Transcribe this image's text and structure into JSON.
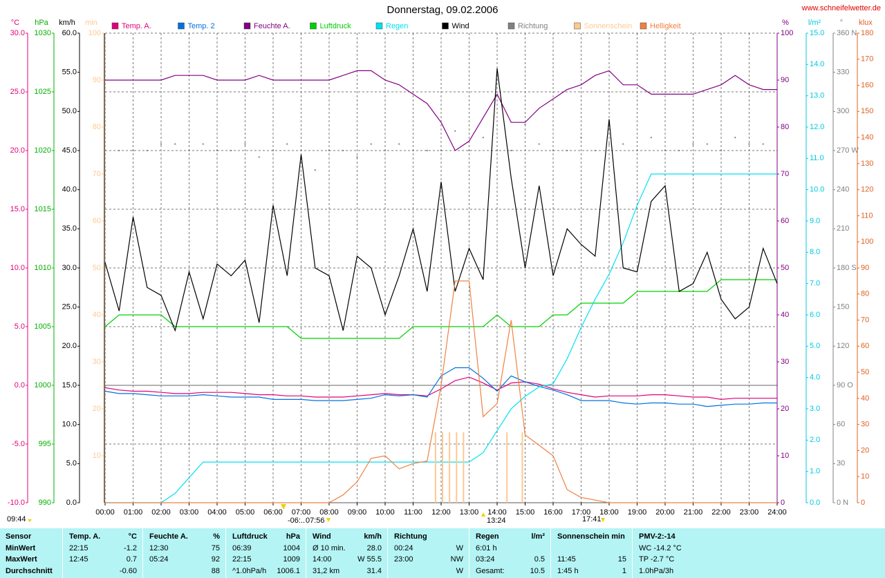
{
  "chart_data": {
    "type": "line",
    "title": "Donnerstag, 09.02.2006",
    "source": "www.schneifelwetter.de",
    "grid": true,
    "annotations": [
      "09:44",
      "-06:..",
      "07:56",
      "13:24",
      "17:41"
    ],
    "xlim": [
      0,
      24
    ],
    "xticks": [
      {
        "value": 0,
        "label": "00:00"
      },
      {
        "value": 1,
        "label": "01:00"
      },
      {
        "value": 2,
        "label": "02:00"
      },
      {
        "value": 3,
        "label": "03:00"
      },
      {
        "value": 4,
        "label": "04:00"
      },
      {
        "value": 5,
        "label": "05:00"
      },
      {
        "value": 6,
        "label": "06:00"
      },
      {
        "value": 7,
        "label": "07:00"
      },
      {
        "value": 8,
        "label": "08:00"
      },
      {
        "value": 9,
        "label": "09:00"
      },
      {
        "value": 10,
        "label": "10:00"
      },
      {
        "value": 11,
        "label": "11:00"
      },
      {
        "value": 12,
        "label": "12:00"
      },
      {
        "value": 13,
        "label": "13:00"
      },
      {
        "value": 14,
        "label": "14:00"
      },
      {
        "value": 15,
        "label": "15:00"
      },
      {
        "value": 16,
        "label": "16:00"
      },
      {
        "value": 17,
        "label": "17:00"
      },
      {
        "value": 18,
        "label": "18:00"
      },
      {
        "value": 19,
        "label": "19:00"
      },
      {
        "value": 20,
        "label": "20:00"
      },
      {
        "value": 21,
        "label": "21:00"
      },
      {
        "value": 22,
        "label": "22:00"
      },
      {
        "value": 23,
        "label": "23:00"
      },
      {
        "value": 24,
        "label": "24:00"
      }
    ],
    "x": [
      0,
      0.5,
      1,
      1.5,
      2,
      2.5,
      3,
      3.5,
      4,
      4.5,
      5,
      5.5,
      6,
      6.5,
      7,
      7.5,
      8,
      8.5,
      9,
      9.5,
      10,
      10.5,
      11,
      11.5,
      12,
      12.5,
      13,
      13.5,
      14,
      14.5,
      15,
      15.5,
      16,
      16.5,
      17,
      17.5,
      18,
      18.5,
      19,
      19.5,
      20,
      20.5,
      21,
      21.5,
      22,
      22.5,
      23,
      23.5,
      24
    ],
    "axes": [
      {
        "unit": "°C",
        "side": "left",
        "color": "#e0007a",
        "ylim": [
          -10,
          30
        ],
        "yticks": [
          {
            "value": -10,
            "label": "-10.0"
          },
          {
            "value": -5,
            "label": "-5.0"
          },
          {
            "value": 0,
            "label": "0.0"
          },
          {
            "value": 5,
            "label": "5.0"
          },
          {
            "value": 10,
            "label": "10.0"
          },
          {
            "value": 15,
            "label": "15.0"
          },
          {
            "value": 20,
            "label": "20.0"
          },
          {
            "value": 25,
            "label": "25.0"
          },
          {
            "value": 30,
            "label": "30.0"
          }
        ]
      },
      {
        "unit": "hPa",
        "side": "left",
        "color": "#00b000",
        "ylim": [
          990,
          1030
        ],
        "yticks": [
          990,
          995,
          1000,
          1005,
          1010,
          1015,
          1020,
          1025,
          1030
        ]
      },
      {
        "unit": "km/h",
        "side": "left",
        "color": "#000000",
        "ylim": [
          0,
          60
        ],
        "yticks": [
          {
            "value": 0,
            "label": "0.0"
          },
          {
            "value": 5,
            "label": "5.0"
          },
          {
            "value": 10,
            "label": "10.0"
          },
          {
            "value": 15,
            "label": "15.0"
          },
          {
            "value": 20,
            "label": "20.0"
          },
          {
            "value": 25,
            "label": "25.0"
          },
          {
            "value": 30,
            "label": "30.0"
          },
          {
            "value": 35,
            "label": "35.0"
          },
          {
            "value": 40,
            "label": "40.0"
          },
          {
            "value": 45,
            "label": "45.0"
          },
          {
            "value": 50,
            "label": "50.0"
          },
          {
            "value": 55,
            "label": "55.0"
          },
          {
            "value": 60,
            "label": "60.0"
          }
        ]
      },
      {
        "unit": "min",
        "side": "left",
        "color": "#ffc890",
        "ylim": [
          0,
          100
        ],
        "yticks": [
          10,
          20,
          30,
          40,
          50,
          60,
          70,
          80,
          90,
          100
        ]
      },
      {
        "unit": "%",
        "side": "right",
        "color": "#800080",
        "ylim": [
          0,
          100
        ],
        "yticks": [
          0,
          10,
          20,
          30,
          40,
          50,
          60,
          70,
          80,
          90,
          100
        ]
      },
      {
        "unit": "l/m²",
        "side": "right",
        "color": "#00c8e0",
        "ylim": [
          0,
          15
        ],
        "yticks": [
          {
            "value": 0,
            "label": "0.0"
          },
          {
            "value": 1,
            "label": "1.0"
          },
          {
            "value": 2,
            "label": "2.0"
          },
          {
            "value": 3,
            "label": "3.0"
          },
          {
            "value": 4,
            "label": "4.0"
          },
          {
            "value": 5,
            "label": "5.0"
          },
          {
            "value": 6,
            "label": "6.0"
          },
          {
            "value": 7,
            "label": "7.0"
          },
          {
            "value": 8,
            "label": "8.0"
          },
          {
            "value": 9,
            "label": "9.0"
          },
          {
            "value": 10,
            "label": "10.0"
          },
          {
            "value": 11,
            "label": "11.0"
          },
          {
            "value": 12,
            "label": "12.0"
          },
          {
            "value": 13,
            "label": "13.0"
          },
          {
            "value": 14,
            "label": "14.0"
          },
          {
            "value": 15,
            "label": "15.0"
          }
        ]
      },
      {
        "unit": "°",
        "side": "right",
        "color": "#808080",
        "ylim": [
          0,
          360
        ],
        "yticks": [
          {
            "value": 0,
            "label": "0 N"
          },
          30,
          60,
          {
            "value": 90,
            "label": "90 O"
          },
          120,
          150,
          {
            "value": 180,
            "label": "180 S"
          },
          210,
          240,
          {
            "value": 270,
            "label": "270 W"
          },
          300,
          330,
          {
            "value": 360,
            "label": "360 N"
          }
        ]
      },
      {
        "unit": "klux",
        "side": "right",
        "color": "#e06020",
        "ylim": [
          0,
          180
        ],
        "yticks": [
          0,
          10,
          20,
          30,
          40,
          50,
          60,
          70,
          80,
          90,
          100,
          110,
          120,
          130,
          140,
          150,
          160,
          170,
          180
        ]
      }
    ],
    "series": [
      {
        "name": "Temp. A.",
        "color": "#e0007a",
        "axis": "°C",
        "style": "line",
        "values": [
          -0.2,
          -0.4,
          -0.5,
          -0.5,
          -0.6,
          -0.7,
          -0.7,
          -0.6,
          -0.6,
          -0.6,
          -0.7,
          -0.8,
          -0.8,
          -0.9,
          -0.9,
          -1.0,
          -1.0,
          -1.0,
          -0.9,
          -0.8,
          -0.7,
          -0.8,
          -0.8,
          -0.9,
          -0.3,
          0.4,
          0.7,
          0.2,
          -0.4,
          0.2,
          0.3,
          0.1,
          -0.3,
          -0.6,
          -0.8,
          -1.0,
          -0.9,
          -0.9,
          -0.9,
          -0.8,
          -0.8,
          -0.9,
          -1.0,
          -1.0,
          -1.2,
          -1.1,
          -1.1,
          -1.1,
          -1.1
        ]
      },
      {
        "name": "Temp. 2",
        "color": "#0070e0",
        "axis": "°C",
        "style": "line",
        "values": [
          -0.5,
          -0.7,
          -0.7,
          -0.8,
          -0.9,
          -0.9,
          -0.9,
          -0.8,
          -0.9,
          -1.0,
          -1.0,
          -1.0,
          -1.2,
          -1.2,
          -1.2,
          -1.3,
          -1.3,
          -1.3,
          -1.2,
          -1.1,
          -0.8,
          -0.9,
          -0.8,
          -1.0,
          0.8,
          1.5,
          1.5,
          0.6,
          -0.5,
          0.8,
          0.3,
          -0.1,
          -0.4,
          -0.8,
          -1.3,
          -1.3,
          -1.3,
          -1.5,
          -1.6,
          -1.5,
          -1.5,
          -1.6,
          -1.6,
          -1.8,
          -1.7,
          -1.6,
          -1.6,
          -1.5,
          -1.5
        ]
      },
      {
        "name": "Feuchte A.",
        "color": "#800080",
        "axis": "%",
        "style": "line",
        "values": [
          90,
          90,
          90,
          90,
          90,
          91,
          91,
          91,
          90,
          90,
          90,
          91,
          90,
          90,
          90,
          90,
          90,
          91,
          92,
          92,
          90,
          89,
          87,
          85,
          81,
          75,
          77,
          82,
          87,
          81,
          81,
          84,
          86,
          88,
          89,
          91,
          92,
          89,
          89,
          87,
          87,
          87,
          87,
          88,
          89,
          91,
          89,
          88,
          88
        ]
      },
      {
        "name": "Luftdruck",
        "color": "#00d000",
        "axis": "hPa",
        "style": "line",
        "values": [
          1005,
          1006,
          1006,
          1006,
          1006,
          1005,
          1005,
          1005,
          1005,
          1005,
          1005,
          1005,
          1005,
          1005,
          1004,
          1004,
          1004,
          1004,
          1004,
          1004,
          1004,
          1004,
          1005,
          1005,
          1005,
          1005,
          1005,
          1005,
          1006,
          1005,
          1005,
          1005,
          1006,
          1006,
          1007,
          1007,
          1007,
          1007,
          1008,
          1008,
          1008,
          1008,
          1008,
          1008,
          1009,
          1009,
          1009,
          1009,
          1009
        ]
      },
      {
        "name": "Regen",
        "color": "#00e0f0",
        "axis": "l/m²",
        "style": "line",
        "values": [
          0,
          0,
          0,
          0,
          0,
          0.3,
          0.8,
          1.3,
          1.3,
          1.3,
          1.3,
          1.3,
          1.3,
          1.3,
          1.3,
          1.3,
          1.3,
          1.3,
          1.3,
          1.3,
          1.3,
          1.3,
          1.3,
          1.3,
          1.3,
          1.3,
          1.3,
          1.6,
          2.3,
          3.0,
          3.4,
          3.7,
          3.8,
          4.6,
          5.6,
          6.5,
          7.3,
          8.3,
          9.5,
          10.5,
          10.5,
          10.5,
          10.5,
          10.5,
          10.5,
          10.5,
          10.5,
          10.5,
          10.5
        ]
      },
      {
        "name": "Wind",
        "color": "#000000",
        "axis": "km/h",
        "style": "line",
        "values": [
          30.7,
          24.5,
          36.5,
          27.5,
          26.5,
          22,
          29.5,
          23.5,
          30.5,
          29,
          31,
          23,
          38,
          29,
          44.5,
          30,
          29,
          22,
          31.5,
          30,
          24,
          29,
          35,
          27,
          41,
          27,
          32.5,
          28.5,
          55.5,
          41.5,
          30,
          40.5,
          29,
          35,
          33,
          31.5,
          49,
          30,
          29.5,
          38.5,
          40.5,
          27,
          28,
          32,
          26,
          23.5,
          25,
          32.5,
          28
        ]
      },
      {
        "name": "Richtung",
        "color": "#808080",
        "axis": "°",
        "style": "dots",
        "values": [
          255,
          270,
          270,
          270,
          275,
          275,
          270,
          275,
          270,
          270,
          275,
          265,
          270,
          275,
          270,
          255,
          270,
          270,
          265,
          275,
          270,
          275,
          270,
          270,
          270,
          285,
          270,
          280,
          270,
          270,
          290,
          275,
          270,
          270,
          280,
          270,
          275,
          275,
          270,
          280,
          270,
          270,
          275,
          275,
          270,
          280,
          275,
          275,
          270
        ]
      },
      {
        "name": "Sonnenschein",
        "color": "#ffc890",
        "axis": "min",
        "style": "bars",
        "x": [
          11.8,
          12.05,
          12.3,
          12.55,
          12.8,
          14.35,
          14.9
        ],
        "values": [
          15,
          15,
          15,
          15,
          15,
          15,
          15
        ]
      },
      {
        "name": "Helligkeit",
        "color": "#f08040",
        "axis": "klux",
        "style": "line",
        "values": [
          0,
          0,
          0,
          0,
          0,
          0,
          0,
          0,
          0,
          0,
          0,
          0,
          0,
          0,
          0,
          0,
          0,
          3,
          8,
          17,
          18,
          13,
          15,
          16,
          45,
          85,
          85,
          33,
          38,
          70,
          26,
          22,
          18,
          5,
          2,
          1,
          0,
          0,
          0,
          0,
          0,
          0,
          0,
          0,
          0,
          0,
          0,
          0,
          0
        ]
      }
    ]
  },
  "table": {
    "header": [
      [
        "Sensor"
      ],
      [
        "Temp. A.",
        "°C"
      ],
      [
        "Feuchte A.",
        "%"
      ],
      [
        "Luftdruck",
        "hPa"
      ],
      [
        "Wind",
        "km/h"
      ],
      [
        "Richtung"
      ],
      [
        "Regen",
        "l/m²"
      ],
      [
        "Sonnenschein min"
      ],
      [
        "PMV-2:-14"
      ]
    ],
    "rows": [
      [
        [
          "MinWert"
        ],
        [
          "22:15",
          "-1.2"
        ],
        [
          "12:30",
          "75"
        ],
        [
          "06:39",
          "1004"
        ],
        [
          "Ø 10 min.",
          "28.0"
        ],
        [
          "00:24",
          "W"
        ],
        [
          "6:01 h"
        ],
        [],
        [
          "WC -14.2 °C"
        ]
      ],
      [
        [
          "MaxWert"
        ],
        [
          "12:45",
          "0.7"
        ],
        [
          "05:24",
          "92"
        ],
        [
          "22:15",
          "1009"
        ],
        [
          "14:00",
          "W 55.5"
        ],
        [
          "23:00",
          "NW"
        ],
        [
          "03:24",
          "0.5"
        ],
        [
          "11:45",
          "15"
        ],
        [
          "TP -2.7 °C"
        ]
      ],
      [
        [
          "Durchschnitt"
        ],
        [
          null,
          "-0.60"
        ],
        [
          null,
          "88"
        ],
        [
          "^1.0hPa/h",
          "1006.1"
        ],
        [
          "31,2 km",
          "31.4"
        ],
        [
          null,
          "W"
        ],
        [
          "Gesamt:",
          "10.5"
        ],
        [
          "1:45 h",
          "1"
        ],
        [
          "1.0hPa/3h"
        ]
      ]
    ]
  }
}
